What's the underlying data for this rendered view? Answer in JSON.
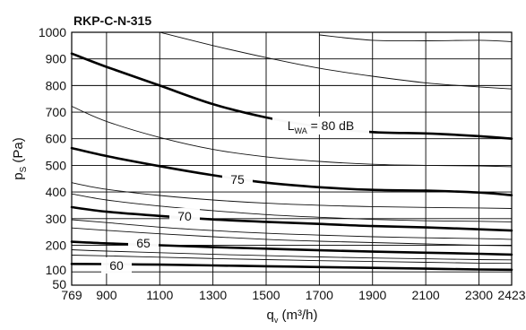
{
  "chart_data": {
    "type": "line",
    "title": "RKP-C-N-315",
    "xlabel": "q",
    "xlabel_sub": "v",
    "xlabel_unit": "(m³/h)",
    "ylabel": "p",
    "ylabel_sub": "S",
    "ylabel_unit": "(Pa)",
    "xlim": [
      769,
      2423
    ],
    "ylim": [
      50,
      1000
    ],
    "x_ticks": [
      769,
      900,
      1100,
      1300,
      1500,
      1700,
      1900,
      2100,
      2300,
      2423
    ],
    "x_tick_labels": [
      "769",
      "900",
      "1100",
      "1300",
      "1500",
      "1700",
      "1900",
      "2100",
      "2300",
      "2423"
    ],
    "y_ticks": [
      50,
      100,
      200,
      300,
      400,
      500,
      600,
      700,
      800,
      900,
      1000
    ],
    "y_tick_labels": [
      "50",
      "100",
      "200",
      "300",
      "400",
      "500",
      "600",
      "700",
      "800",
      "900",
      "1000"
    ],
    "grid": true,
    "bold_series": [
      {
        "name": "L_WA = 80 dB",
        "label_main": "L",
        "label_sub": "WA",
        "label_tail": "= 80 dB",
        "x": [
          769,
          900,
          1100,
          1300,
          1500,
          1700,
          1900,
          2100,
          2300,
          2423
        ],
        "y": [
          920,
          870,
          800,
          730,
          680,
          645,
          625,
          620,
          610,
          600
        ]
      },
      {
        "name": "75",
        "label_main": "75",
        "x": [
          769,
          900,
          1100,
          1300,
          1500,
          1700,
          1900,
          2100,
          2300,
          2423
        ],
        "y": [
          565,
          535,
          497,
          463,
          435,
          418,
          408,
          405,
          398,
          388
        ]
      },
      {
        "name": "70",
        "label_main": "70",
        "x": [
          769,
          900,
          1100,
          1300,
          1500,
          1700,
          1900,
          2100,
          2300,
          2423
        ],
        "y": [
          343,
          326,
          310,
          297,
          288,
          280,
          272,
          267,
          260,
          255
        ]
      },
      {
        "name": "65",
        "label_main": "65",
        "x": [
          769,
          900,
          1100,
          1300,
          1500,
          1700,
          1900,
          2100,
          2300,
          2423
        ],
        "y": [
          213,
          207,
          200,
          193,
          187,
          181,
          176,
          172,
          168,
          165
        ]
      },
      {
        "name": "60",
        "label_main": "60",
        "x": [
          769,
          900,
          1100,
          1300,
          1500,
          1700,
          1900,
          2100,
          2300,
          2423
        ],
        "y": [
          130,
          129,
          127,
          124,
          121,
          118,
          115,
          112,
          109,
          108
        ]
      }
    ],
    "thin_series": [
      {
        "x": [
          1100,
          1300,
          1500,
          1700,
          1900,
          2100,
          2300,
          2423
        ],
        "y": [
          1000,
          950,
          905,
          865,
          835,
          810,
          795,
          787
        ]
      },
      {
        "x": [
          1700,
          1900,
          2100,
          2300,
          2423
        ],
        "y": [
          990,
          970,
          968,
          970,
          965
        ]
      },
      {
        "x": [
          769,
          900,
          1100,
          1300,
          1500,
          1700,
          1900,
          2100,
          2300,
          2423
        ],
        "y": [
          722,
          665,
          605,
          560,
          532,
          515,
          504,
          500,
          498,
          495
        ]
      },
      {
        "x": [
          769,
          900,
          1100,
          1300,
          1500,
          1700,
          1900,
          2100,
          2300,
          2423
        ],
        "y": [
          435,
          410,
          387,
          370,
          358,
          350,
          345,
          342,
          340,
          338
        ]
      },
      {
        "x": [
          769,
          900,
          1100,
          1300,
          1500,
          1700,
          1900,
          2100,
          2300,
          2423
        ],
        "y": [
          393,
          370,
          347,
          330,
          315,
          305,
          297,
          292,
          290,
          288
        ]
      },
      {
        "x": [
          769,
          900,
          1100,
          1300,
          1500,
          1700,
          1900,
          2100,
          2300,
          2423
        ],
        "y": [
          296,
          285,
          268,
          255,
          245,
          238,
          232,
          228,
          225,
          222
        ]
      },
      {
        "x": [
          769,
          900,
          1100,
          1300,
          1500,
          1700,
          1900,
          2100,
          2300,
          2423
        ],
        "y": [
          265,
          256,
          243,
          232,
          222,
          215,
          210,
          205,
          200,
          198
        ]
      },
      {
        "x": [
          769,
          900,
          1100,
          1300,
          1500,
          1700,
          1900,
          2100,
          2300,
          2423
        ],
        "y": [
          183,
          178,
          172,
          166,
          161,
          156,
          152,
          149,
          146,
          145
        ]
      },
      {
        "x": [
          769,
          900,
          1100,
          1300,
          1500,
          1700,
          1900,
          2100,
          2300,
          2423
        ],
        "y": [
          163,
          160,
          155,
          150,
          146,
          142,
          139,
          136,
          133,
          132
        ]
      }
    ]
  }
}
